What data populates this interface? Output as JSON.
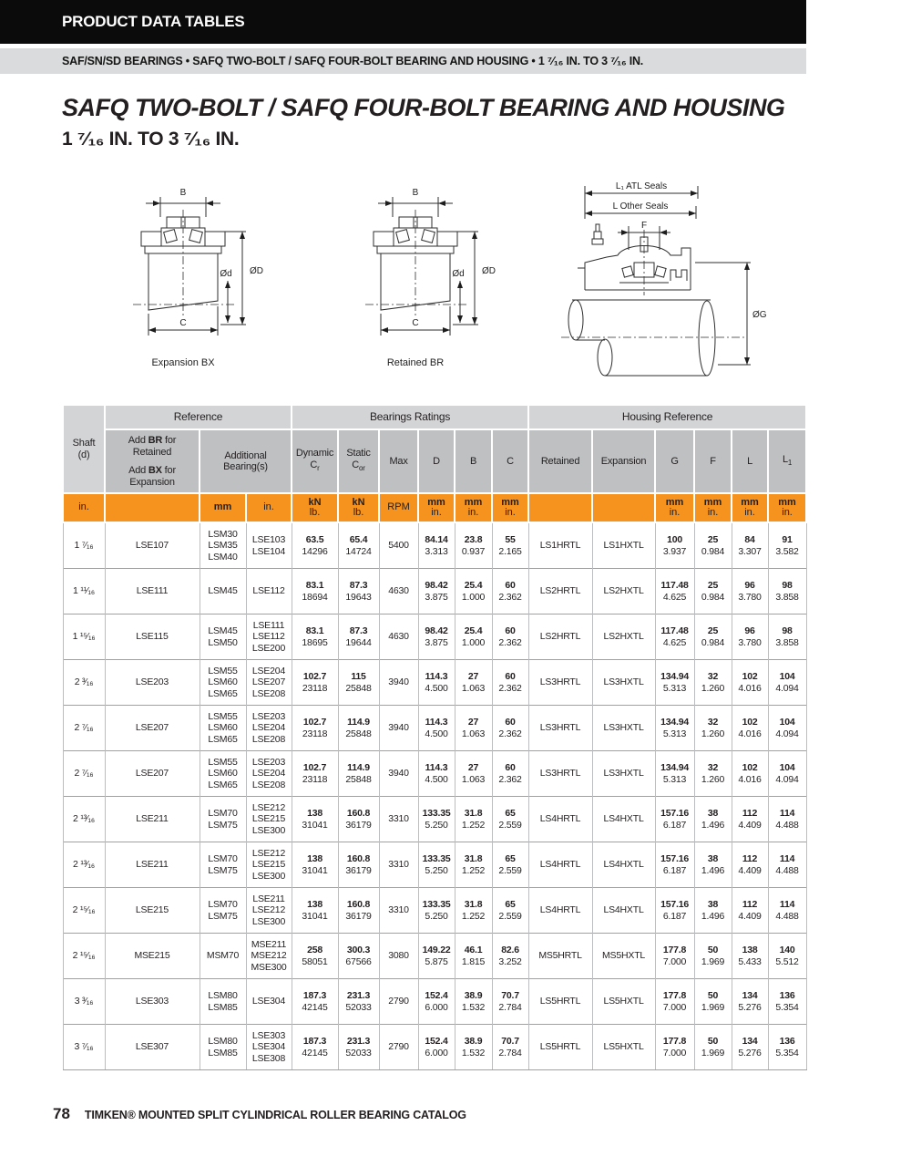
{
  "colors": {
    "accent_orange": "#F6921E",
    "header_gray_light": "#D3D4D6",
    "header_gray_dark": "#BEC0C2",
    "subtitle_bar_gray": "#DADBDC",
    "bar_black": "#0B0B0B"
  },
  "header": {
    "bar_title": "PRODUCT DATA TABLES",
    "bar_subtitle": "SAF/SN/SD BEARINGS • SAFQ TWO-BOLT / SAFQ FOUR-BOLT BEARING AND HOUSING • 1 ⁷⁄₁₆ IN. TO 3 ⁷⁄₁₆ IN.",
    "title_line1": "SAFQ TWO-BOLT / SAFQ FOUR-BOLT BEARING AND HOUSING",
    "title_line2": "1 ⁷⁄₁₆ IN. TO 3 ⁷⁄₁₆ IN."
  },
  "diagrams": {
    "expansion": {
      "caption": "Expansion BX",
      "dim_b": "B",
      "dim_od": "ØD",
      "dim_d": "Ød",
      "dim_c": "C"
    },
    "retained": {
      "caption": "Retained BR",
      "dim_b": "B",
      "dim_od": "ØD",
      "dim_d": "Ød",
      "dim_c": "C"
    },
    "housing": {
      "dim_l1": "L₁ ATL Seals",
      "dim_l": "L Other Seals",
      "dim_f": "F",
      "dim_g": "ØG"
    }
  },
  "table": {
    "groups": {
      "reference": "Reference",
      "bearings": "Bearings Ratings",
      "housing": "Housing Reference"
    },
    "headers": {
      "shaft_line1": "Shaft",
      "shaft_line2": "(d)",
      "add_br_pre": "Add ",
      "add_br_code": "BR",
      "add_br_post": " for",
      "add_br_line2": "Retained",
      "add_bx_pre": "Add ",
      "add_bx_code": "BX",
      "add_bx_post": " for",
      "add_bx_line2": "Expansion",
      "additional_line1": "Additional",
      "additional_line2": "Bearing(s)",
      "dynamic_line1": "Dynamic",
      "dynamic_c": "C",
      "dynamic_sub": "r",
      "static_line1": "Static",
      "static_c": "C",
      "static_sub": "or",
      "max": "Max",
      "d": "D",
      "b": "B",
      "c": "C",
      "retained": "Retained",
      "expansion": "Expansion",
      "g": "G",
      "f": "F",
      "l": "L",
      "l1_main": "L",
      "l1_sub": "1"
    },
    "units": {
      "shaft": "in.",
      "mm": "mm",
      "in": "in.",
      "kn": "kN",
      "lb": "lb.",
      "rpm": "RPM"
    },
    "rows": [
      {
        "shaft": "1 ⁷⁄₁₆",
        "ref": "LSE107",
        "add_mm": [
          "LSM30",
          "LSM35",
          "LSM40"
        ],
        "add_in": [
          "LSE103",
          "LSE104"
        ],
        "dynamic": [
          "63.5",
          "14296"
        ],
        "static": [
          "65.4",
          "14724"
        ],
        "max": "5400",
        "d": [
          "84.14",
          "3.313"
        ],
        "b": [
          "23.8",
          "0.937"
        ],
        "c": [
          "55",
          "2.165"
        ],
        "retained": "LS1HRTL",
        "expansion": "LS1HXTL",
        "g": [
          "100",
          "3.937"
        ],
        "f": [
          "25",
          "0.984"
        ],
        "l": [
          "84",
          "3.307"
        ],
        "l1": [
          "91",
          "3.582"
        ]
      },
      {
        "shaft": "1 ¹¹⁄₁₆",
        "ref": "LSE111",
        "add_mm": [
          "LSM45"
        ],
        "add_in": [
          "LSE112"
        ],
        "dynamic": [
          "83.1",
          "18694"
        ],
        "static": [
          "87.3",
          "19643"
        ],
        "max": "4630",
        "d": [
          "98.42",
          "3.875"
        ],
        "b": [
          "25.4",
          "1.000"
        ],
        "c": [
          "60",
          "2.362"
        ],
        "retained": "LS2HRTL",
        "expansion": "LS2HXTL",
        "g": [
          "117.48",
          "4.625"
        ],
        "f": [
          "25",
          "0.984"
        ],
        "l": [
          "96",
          "3.780"
        ],
        "l1": [
          "98",
          "3.858"
        ]
      },
      {
        "shaft": "1 ¹⁵⁄₁₆",
        "ref": "LSE115",
        "add_mm": [
          "LSM45",
          "LSM50"
        ],
        "add_in": [
          "LSE111",
          "LSE112",
          "LSE200"
        ],
        "dynamic": [
          "83.1",
          "18695"
        ],
        "static": [
          "87.3",
          "19644"
        ],
        "max": "4630",
        "d": [
          "98.42",
          "3.875"
        ],
        "b": [
          "25.4",
          "1.000"
        ],
        "c": [
          "60",
          "2.362"
        ],
        "retained": "LS2HRTL",
        "expansion": "LS2HXTL",
        "g": [
          "117.48",
          "4.625"
        ],
        "f": [
          "25",
          "0.984"
        ],
        "l": [
          "96",
          "3.780"
        ],
        "l1": [
          "98",
          "3.858"
        ]
      },
      {
        "shaft": "2 ³⁄₁₆",
        "ref": "LSE203",
        "add_mm": [
          "LSM55",
          "LSM60",
          "LSM65"
        ],
        "add_in": [
          "LSE204",
          "LSE207",
          "LSE208"
        ],
        "dynamic": [
          "102.7",
          "23118"
        ],
        "static": [
          "115",
          "25848"
        ],
        "max": "3940",
        "d": [
          "114.3",
          "4.500"
        ],
        "b": [
          "27",
          "1.063"
        ],
        "c": [
          "60",
          "2.362"
        ],
        "retained": "LS3HRTL",
        "expansion": "LS3HXTL",
        "g": [
          "134.94",
          "5.313"
        ],
        "f": [
          "32",
          "1.260"
        ],
        "l": [
          "102",
          "4.016"
        ],
        "l1": [
          "104",
          "4.094"
        ]
      },
      {
        "shaft": "2 ⁷⁄₁₆",
        "ref": "LSE207",
        "add_mm": [
          "LSM55",
          "LSM60",
          "LSM65"
        ],
        "add_in": [
          "LSE203",
          "LSE204",
          "LSE208"
        ],
        "dynamic": [
          "102.7",
          "23118"
        ],
        "static": [
          "114.9",
          "25848"
        ],
        "max": "3940",
        "d": [
          "114.3",
          "4.500"
        ],
        "b": [
          "27",
          "1.063"
        ],
        "c": [
          "60",
          "2.362"
        ],
        "retained": "LS3HRTL",
        "expansion": "LS3HXTL",
        "g": [
          "134.94",
          "5.313"
        ],
        "f": [
          "32",
          "1.260"
        ],
        "l": [
          "102",
          "4.016"
        ],
        "l1": [
          "104",
          "4.094"
        ]
      },
      {
        "shaft": "2 ⁷⁄₁₆",
        "ref": "LSE207",
        "add_mm": [
          "LSM55",
          "LSM60",
          "LSM65"
        ],
        "add_in": [
          "LSE203",
          "LSE204",
          "LSE208"
        ],
        "dynamic": [
          "102.7",
          "23118"
        ],
        "static": [
          "114.9",
          "25848"
        ],
        "max": "3940",
        "d": [
          "114.3",
          "4.500"
        ],
        "b": [
          "27",
          "1.063"
        ],
        "c": [
          "60",
          "2.362"
        ],
        "retained": "LS3HRTL",
        "expansion": "LS3HXTL",
        "g": [
          "134.94",
          "5.313"
        ],
        "f": [
          "32",
          "1.260"
        ],
        "l": [
          "102",
          "4.016"
        ],
        "l1": [
          "104",
          "4.094"
        ]
      },
      {
        "shaft": "2 ¹³⁄₁₆",
        "ref": "LSE211",
        "add_mm": [
          "LSM70",
          "LSM75"
        ],
        "add_in": [
          "LSE212",
          "LSE215",
          "LSE300"
        ],
        "dynamic": [
          "138",
          "31041"
        ],
        "static": [
          "160.8",
          "36179"
        ],
        "max": "3310",
        "d": [
          "133.35",
          "5.250"
        ],
        "b": [
          "31.8",
          "1.252"
        ],
        "c": [
          "65",
          "2.559"
        ],
        "retained": "LS4HRTL",
        "expansion": "LS4HXTL",
        "g": [
          "157.16",
          "6.187"
        ],
        "f": [
          "38",
          "1.496"
        ],
        "l": [
          "112",
          "4.409"
        ],
        "l1": [
          "114",
          "4.488"
        ]
      },
      {
        "shaft": "2 ¹³⁄₁₆",
        "ref": "LSE211",
        "add_mm": [
          "LSM70",
          "LSM75"
        ],
        "add_in": [
          "LSE212",
          "LSE215",
          "LSE300"
        ],
        "dynamic": [
          "138",
          "31041"
        ],
        "static": [
          "160.8",
          "36179"
        ],
        "max": "3310",
        "d": [
          "133.35",
          "5.250"
        ],
        "b": [
          "31.8",
          "1.252"
        ],
        "c": [
          "65",
          "2.559"
        ],
        "retained": "LS4HRTL",
        "expansion": "LS4HXTL",
        "g": [
          "157.16",
          "6.187"
        ],
        "f": [
          "38",
          "1.496"
        ],
        "l": [
          "112",
          "4.409"
        ],
        "l1": [
          "114",
          "4.488"
        ]
      },
      {
        "shaft": "2 ¹⁵⁄₁₆",
        "ref": "LSE215",
        "add_mm": [
          "LSM70",
          "LSM75"
        ],
        "add_in": [
          "LSE211",
          "LSE212",
          "LSE300"
        ],
        "dynamic": [
          "138",
          "31041"
        ],
        "static": [
          "160.8",
          "36179"
        ],
        "max": "3310",
        "d": [
          "133.35",
          "5.250"
        ],
        "b": [
          "31.8",
          "1.252"
        ],
        "c": [
          "65",
          "2.559"
        ],
        "retained": "LS4HRTL",
        "expansion": "LS4HXTL",
        "g": [
          "157.16",
          "6.187"
        ],
        "f": [
          "38",
          "1.496"
        ],
        "l": [
          "112",
          "4.409"
        ],
        "l1": [
          "114",
          "4.488"
        ]
      },
      {
        "shaft": "2 ¹⁵⁄₁₆",
        "ref": "MSE215",
        "add_mm": [
          "MSM70"
        ],
        "add_in": [
          "MSE211",
          "MSE212",
          "MSE300"
        ],
        "dynamic": [
          "258",
          "58051"
        ],
        "static": [
          "300.3",
          "67566"
        ],
        "max": "3080",
        "d": [
          "149.22",
          "5.875"
        ],
        "b": [
          "46.1",
          "1.815"
        ],
        "c": [
          "82.6",
          "3.252"
        ],
        "retained": "MS5HRTL",
        "expansion": "MS5HXTL",
        "g": [
          "177.8",
          "7.000"
        ],
        "f": [
          "50",
          "1.969"
        ],
        "l": [
          "138",
          "5.433"
        ],
        "l1": [
          "140",
          "5.512"
        ]
      },
      {
        "shaft": "3 ³⁄₁₆",
        "ref": "LSE303",
        "add_mm": [
          "LSM80",
          "LSM85"
        ],
        "add_in": [
          "LSE304"
        ],
        "dynamic": [
          "187.3",
          "42145"
        ],
        "static": [
          "231.3",
          "52033"
        ],
        "max": "2790",
        "d": [
          "152.4",
          "6.000"
        ],
        "b": [
          "38.9",
          "1.532"
        ],
        "c": [
          "70.7",
          "2.784"
        ],
        "retained": "LS5HRTL",
        "expansion": "LS5HXTL",
        "g": [
          "177.8",
          "7.000"
        ],
        "f": [
          "50",
          "1.969"
        ],
        "l": [
          "134",
          "5.276"
        ],
        "l1": [
          "136",
          "5.354"
        ]
      },
      {
        "shaft": "3 ⁷⁄₁₆",
        "ref": "LSE307",
        "add_mm": [
          "LSM80",
          "LSM85"
        ],
        "add_in": [
          "LSE303",
          "LSE304",
          "LSE308"
        ],
        "dynamic": [
          "187.3",
          "42145"
        ],
        "static": [
          "231.3",
          "52033"
        ],
        "max": "2790",
        "d": [
          "152.4",
          "6.000"
        ],
        "b": [
          "38.9",
          "1.532"
        ],
        "c": [
          "70.7",
          "2.784"
        ],
        "retained": "LS5HRTL",
        "expansion": "LS5HXTL",
        "g": [
          "177.8",
          "7.000"
        ],
        "f": [
          "50",
          "1.969"
        ],
        "l": [
          "134",
          "5.276"
        ],
        "l1": [
          "136",
          "5.354"
        ]
      }
    ]
  },
  "footer": {
    "page_number": "78",
    "text": "TIMKEN® MOUNTED SPLIT CYLINDRICAL ROLLER BEARING CATALOG"
  }
}
